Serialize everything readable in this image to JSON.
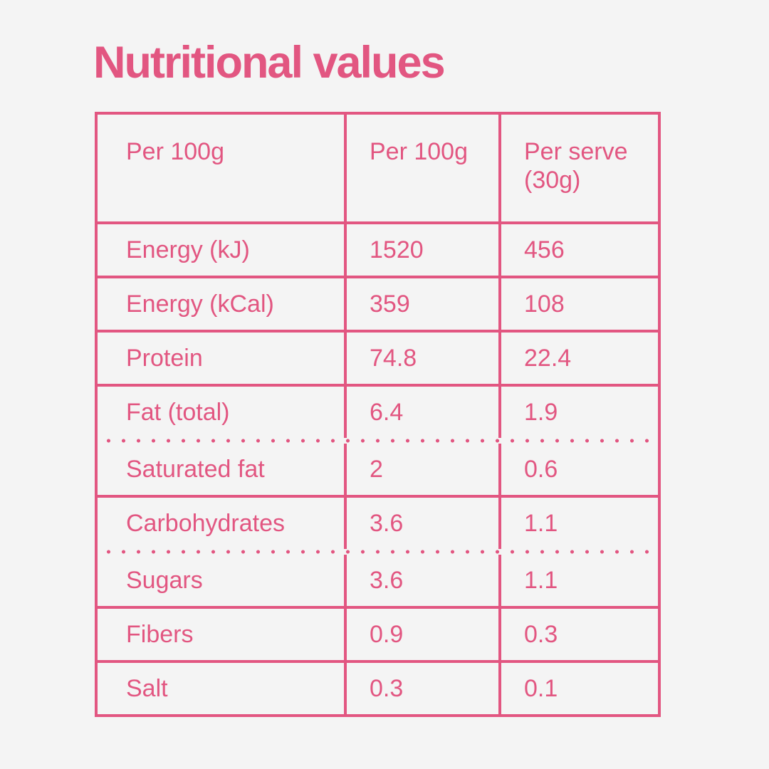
{
  "colors": {
    "accent_pink": "#E25681",
    "background": "#F4F4F4"
  },
  "title": "Nutritional values",
  "table": {
    "header": {
      "col1": "Per 100g",
      "col2": "Per 100g",
      "col3": "Per serve (30g)"
    },
    "rows": [
      {
        "label": "Energy (kJ)",
        "per_100g": "1520",
        "per_serve": "456"
      },
      {
        "label": "Energy (kCal)",
        "per_100g": "359",
        "per_serve": "108"
      },
      {
        "label": "Protein",
        "per_100g": "74.8",
        "per_serve": "22.4"
      },
      {
        "label": "Fat (total)",
        "per_100g": "6.4",
        "per_serve": "1.9"
      },
      {
        "label": "Saturated fat",
        "per_100g": "2",
        "per_serve": "0.6"
      },
      {
        "label": "Carbohydrates",
        "per_100g": "3.6",
        "per_serve": "1.1"
      },
      {
        "label": "Sugars",
        "per_100g": "3.6",
        "per_serve": "1.1"
      },
      {
        "label": "Fibers",
        "per_100g": "0.9",
        "per_serve": "0.3"
      },
      {
        "label": "Salt",
        "per_100g": "0.3",
        "per_serve": "0.1"
      }
    ]
  }
}
